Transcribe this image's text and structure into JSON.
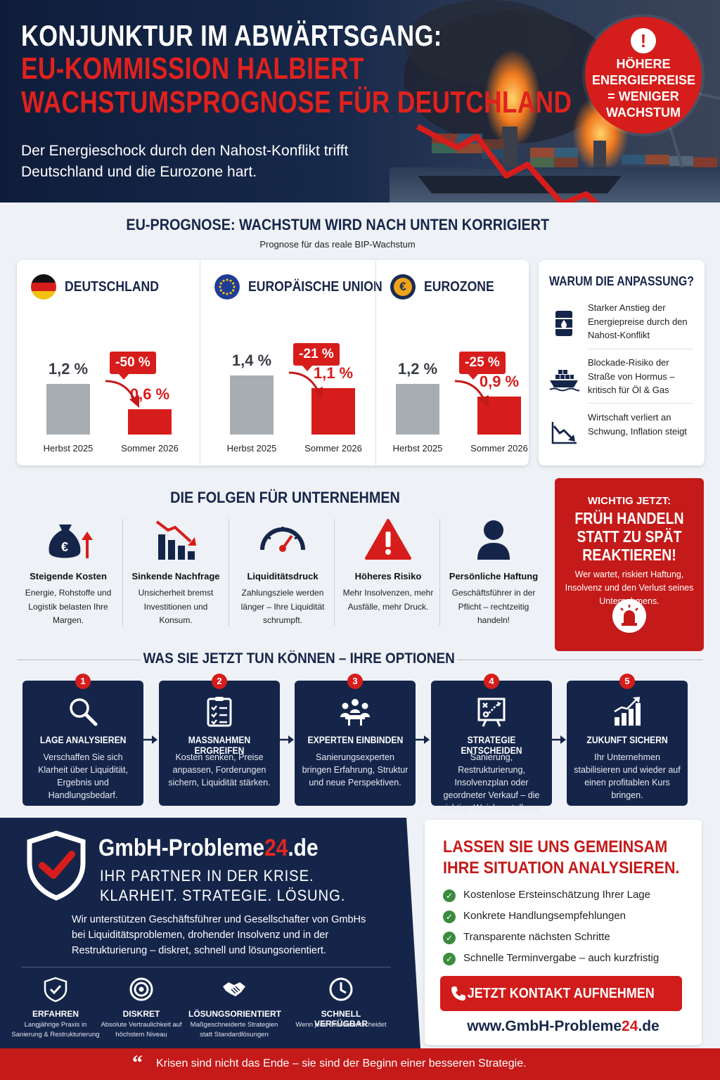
{
  "header": {
    "title_line1": "KONJUNKTUR IM ABWÄRTSGANG:",
    "title_line2": "EU-KOMMISSION HALBIERT",
    "title_line3": "WACHSTUMSPROGNOSE FÜR DEUTCHLAND",
    "subtitle": "Der Energieschock durch den Nahost-Konflikt trifft Deutschland und die Eurozone hart.",
    "badge_icon": "!",
    "badge_text": "HÖHERE ENERGIEPREISE = WENIGER WACHSTUM"
  },
  "forecast": {
    "title": "EU-PROGNOSE: WACHSTUM WIRD NACH UNTEN KORRIGIERT",
    "subtitle": "Prognose für das reale BIP-Wachstum",
    "panels": [
      {
        "name": "DEUTSCHLAND",
        "flag": "germany-flag",
        "before_label": "1,2 %",
        "after_label": "0,6 %",
        "change": "-50 %",
        "before_period": "Herbst 2025",
        "after_period": "Sommer 2026"
      },
      {
        "name": "EUROPÄISCHE UNION",
        "flag": "eu-flag",
        "before_label": "1,4 %",
        "after_label": "1,1 %",
        "change": "-21 %",
        "before_period": "Herbst 2025",
        "after_period": "Sommer 2026"
      },
      {
        "name": "EUROZONE",
        "flag": "euro-icon",
        "euro_symbol": "€",
        "before_label": "1,2 %",
        "after_label": "0,9 %",
        "change": "-25 %",
        "before_period": "Herbst 2025",
        "after_period": "Sommer 2026"
      }
    ]
  },
  "chart_data": [
    {
      "type": "bar",
      "title": "DEUTSCHLAND",
      "categories": [
        "Herbst 2025",
        "Sommer 2026"
      ],
      "values": [
        1.2,
        0.6
      ]
    },
    {
      "type": "bar",
      "title": "EUROPÄISCHE UNION",
      "categories": [
        "Herbst 2025",
        "Sommer 2026"
      ],
      "values": [
        1.4,
        1.1
      ]
    },
    {
      "type": "bar",
      "title": "EUROZONE",
      "categories": [
        "Herbst 2025",
        "Sommer 2026"
      ],
      "values": [
        1.2,
        0.9
      ]
    }
  ],
  "why": {
    "title": "WARUM DIE ANPASSUNG?",
    "items": [
      {
        "icon": "oil-barrel-icon",
        "text": "Starker Anstieg der Energiepreise durch den Nahost-Konflikt"
      },
      {
        "icon": "ship-icon",
        "text": "Blockade-Risiko der Straße von Hormus – kritisch für Öl & Gas"
      },
      {
        "icon": "declining-chart-icon",
        "text": "Wirtschaft verliert an Schwung, Inflation steigt"
      }
    ]
  },
  "consequences": {
    "title": "DIE FOLGEN FÜR UNTERNEHMEN",
    "items": [
      {
        "icon": "money-bag-icon",
        "euro_symbol": "€",
        "title": "Steigende Kosten",
        "text": "Energie, Rohstoffe und Logistik belasten Ihre Margen."
      },
      {
        "icon": "falling-bars-icon",
        "title": "Sinkende Nachfrage",
        "text": "Unsicherheit bremst Investitionen und Konsum."
      },
      {
        "icon": "gauge-icon",
        "title": "Liquiditätsdruck",
        "text": "Zahlungsziele werden länger – Ihre Liquidität schrumpft."
      },
      {
        "icon": "warning-icon",
        "title": "Höheres Risiko",
        "text": "Mehr Insolvenzen, mehr Ausfälle, mehr Druck."
      },
      {
        "icon": "person-icon",
        "title": "Persönliche Haftung",
        "text": "Geschäftsführer in der Pflicht – rechtzeitig handeln!"
      }
    ]
  },
  "alert": {
    "top": "WICHTIG JETZT:",
    "headline": "FRÜH HANDELN STATT ZU SPÄT REAKTIEREN!",
    "text": "Wer wartet, riskiert Haftung, Insolvenz und den Verlust seines Unternehmens."
  },
  "options": {
    "title": "WAS SIE JETZT TUN KÖNNEN – IHRE OPTIONEN",
    "steps": [
      {
        "num": "1",
        "icon": "magnifier-icon",
        "title": "LAGE ANALYSIEREN",
        "text": "Verschaffen Sie sich Klarheit über Liquidität, Ergebnis und Handlungsbedarf."
      },
      {
        "num": "2",
        "icon": "checklist-icon",
        "title": "MASSNAHMEN ERGREIFEN",
        "text": "Kosten senken, Preise anpassen, Forderungen sichern, Liquidität stärken."
      },
      {
        "num": "3",
        "icon": "team-icon",
        "title": "EXPERTEN EINBINDEN",
        "text": "Sanierungsexperten bringen Erfahrung, Struktur und neue Perspektiven."
      },
      {
        "num": "4",
        "icon": "strategy-board-icon",
        "title": "STRATEGIE ENTSCHEIDEN",
        "text": "Sanierung, Restrukturierung, Insolvenzplan oder geordneter Verkauf – die richtige Weichenstellung."
      },
      {
        "num": "5",
        "icon": "growth-chart-icon",
        "title": "ZUKUNFT SICHERN",
        "text": "Ihr Unternehmen stabilisieren und wieder auf einen profitablen Kurs bringen."
      }
    ]
  },
  "brand": {
    "name_a": "GmbH-Probleme",
    "name_b": "24",
    "name_c": ".de",
    "tagline1": "IHR PARTNER IN DER KRISE.",
    "tagline2": "KLARHEIT. STRATEGIE. LÖSUNG.",
    "description": "Wir unterstützen Geschäftsführer und Gesellschafter von GmbHs bei Liquiditätsproblemen, drohender Insolvenz und in der Restrukturierung – diskret, schnell und lösungsorientiert.",
    "usps": [
      {
        "icon": "shield-check-icon",
        "title": "ERFAHREN",
        "text": "Langjährige Praxis in Sanierung & Restrukturierung"
      },
      {
        "icon": "target-icon",
        "title": "DISKRET",
        "text": "Absolute Vertraulichkeit auf höchstem Niveau"
      },
      {
        "icon": "handshake-icon",
        "title": "LÖSUNGSORIENTIERT",
        "text": "Maßgeschneiderte Strategien statt Standardlösungen"
      },
      {
        "icon": "clock-icon",
        "title": "SCHNELL VERFÜGBAR",
        "text": "Wenn jede Stunde entscheidet"
      }
    ]
  },
  "cta": {
    "title_line1": "LASSEN SIE UNS GEMEINSAM",
    "title_line2": "IHRE SITUATION ANALYSIEREN.",
    "checks": [
      "Kostenlose Ersteinschätzung Ihrer Lage",
      "Konkrete Handlungsempfehlungen",
      "Transparente nächsten Schritte",
      "Schnelle Terminvergabe – auch kurzfristig"
    ],
    "button": "JETZT KONTAKT AUFNEHMEN",
    "url_a": "www.GmbH-Probleme",
    "url_b": "24",
    "url_c": ".de"
  },
  "footer": {
    "quote_mark": "“",
    "quote": "Krisen sind nicht das Ende – sie sind der Beginn einer besseren Strategie."
  },
  "colors": {
    "navy": "#15254a",
    "red": "#d71d1b",
    "grey_bar": "#a8adb4",
    "green_check": "#3c8b3f"
  }
}
